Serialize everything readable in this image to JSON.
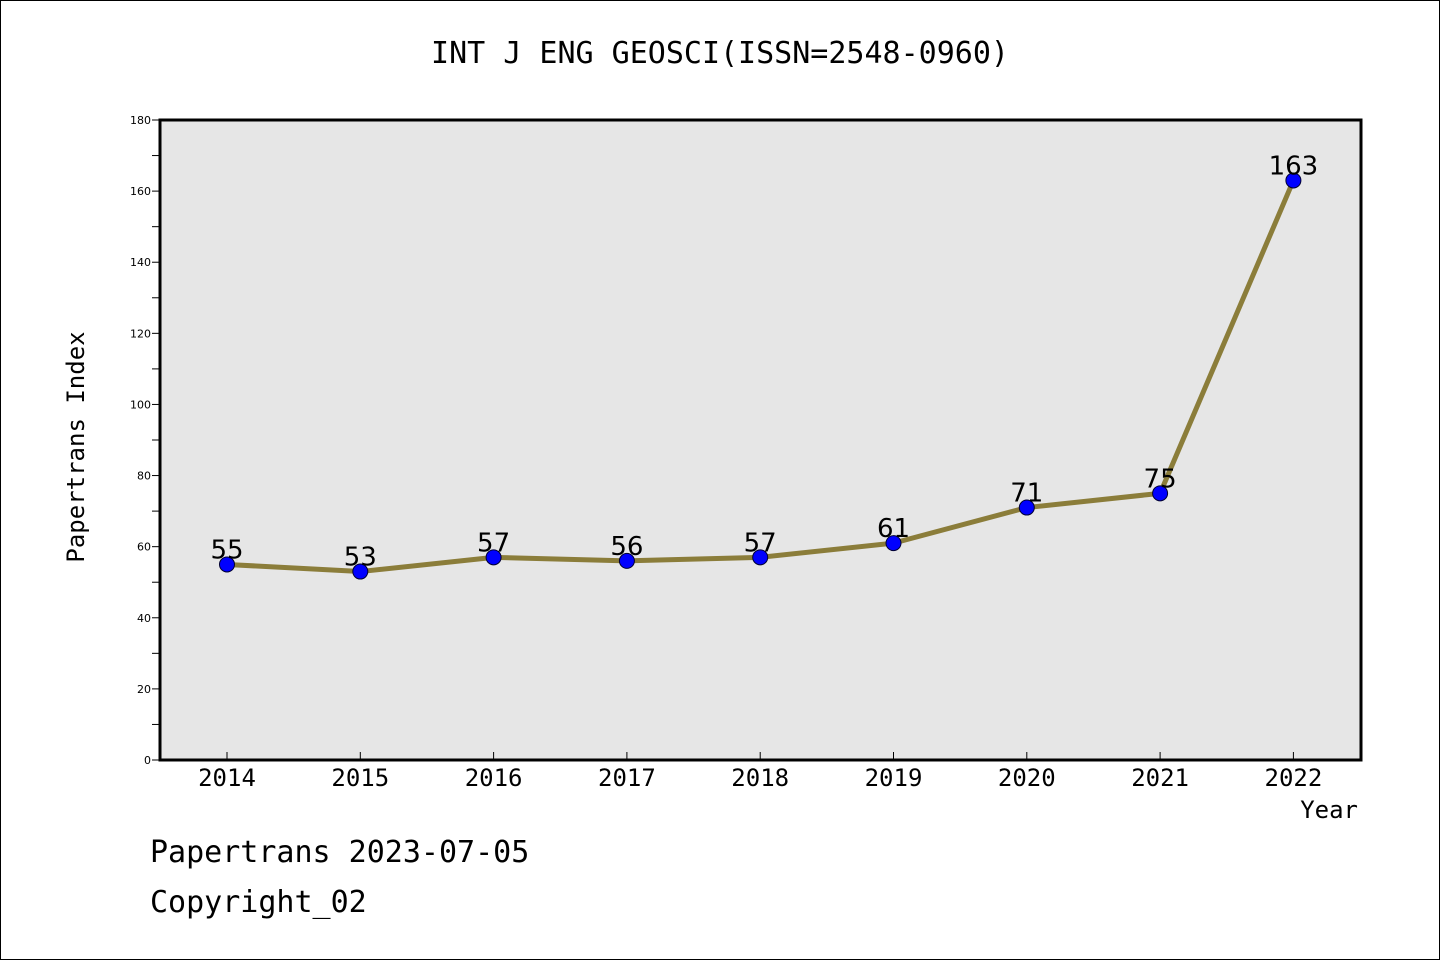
{
  "chart_data": {
    "type": "line",
    "title": "INT J ENG GEOSCI(ISSN=2548-0960)",
    "xlabel": "Year",
    "ylabel": "Papertrans Index",
    "categories": [
      "2014",
      "2015",
      "2016",
      "2017",
      "2018",
      "2019",
      "2020",
      "2021",
      "2022"
    ],
    "series": [
      {
        "values": [
          55,
          53,
          57,
          56,
          57,
          61,
          71,
          75,
          163
        ]
      }
    ],
    "ylim": [
      0,
      180
    ],
    "yticks": [
      0,
      20,
      40,
      60,
      80,
      100,
      120,
      140,
      160,
      180
    ],
    "grid": false,
    "line_color": "#8b7d3a",
    "marker_color": "#0000ff",
    "plot_background": "#e6e6e6"
  },
  "footer": {
    "date_text": "Papertrans 2023-07-05",
    "copyright": "Copyright_02"
  }
}
